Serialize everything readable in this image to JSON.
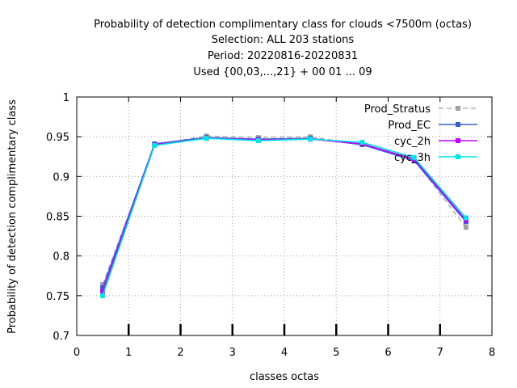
{
  "chart_data": {
    "type": "line",
    "title_lines": [
      "Probability of detection complimentary class  for clouds <7500m (octas)",
      "Selection: ALL    203 stations",
      "Period: 20220816-20220831",
      "Used {00,03,...,21} + 00 01 ... 09"
    ],
    "xlabel": "classes octas",
    "ylabel": "Probability of detection complimentary class",
    "xlim": [
      0,
      8
    ],
    "ylim": [
      0.7,
      1
    ],
    "x_ticks": [
      0,
      1,
      2,
      3,
      4,
      5,
      6,
      7,
      8
    ],
    "x_tick_labels": [
      "0",
      "1",
      "2",
      "3",
      "4",
      "5",
      "6",
      "7",
      "8"
    ],
    "y_ticks": [
      0.7,
      0.75,
      0.8,
      0.85,
      0.9,
      0.95,
      1
    ],
    "y_tick_labels": [
      "0.7",
      "0.75",
      "0.8",
      "0.85",
      "0.9",
      "0.95",
      "1"
    ],
    "grid": true,
    "legend_position": "top-right",
    "x": [
      0.5,
      1.5,
      2.5,
      3.5,
      4.5,
      5.5,
      6.5,
      7.5
    ],
    "series": [
      {
        "name": "Prod_Stratus",
        "color": "#a0a0a0",
        "dashed": true,
        "values": [
          0.764,
          0.94,
          0.951,
          0.949,
          0.95,
          0.94,
          0.921,
          0.836
        ]
      },
      {
        "name": "Prod_EC",
        "color": "#3a5fcd",
        "dashed": false,
        "values": [
          0.76,
          0.941,
          0.949,
          0.947,
          0.948,
          0.94,
          0.92,
          0.843
        ]
      },
      {
        "name": "cyc_2h",
        "color": "#c000ff",
        "dashed": false,
        "values": [
          0.755,
          0.94,
          0.948,
          0.946,
          0.947,
          0.941,
          0.922,
          0.845
        ]
      },
      {
        "name": "cyc_3h",
        "color": "#00e5e5",
        "dashed": false,
        "values": [
          0.75,
          0.939,
          0.948,
          0.945,
          0.947,
          0.943,
          0.924,
          0.848
        ]
      }
    ]
  }
}
